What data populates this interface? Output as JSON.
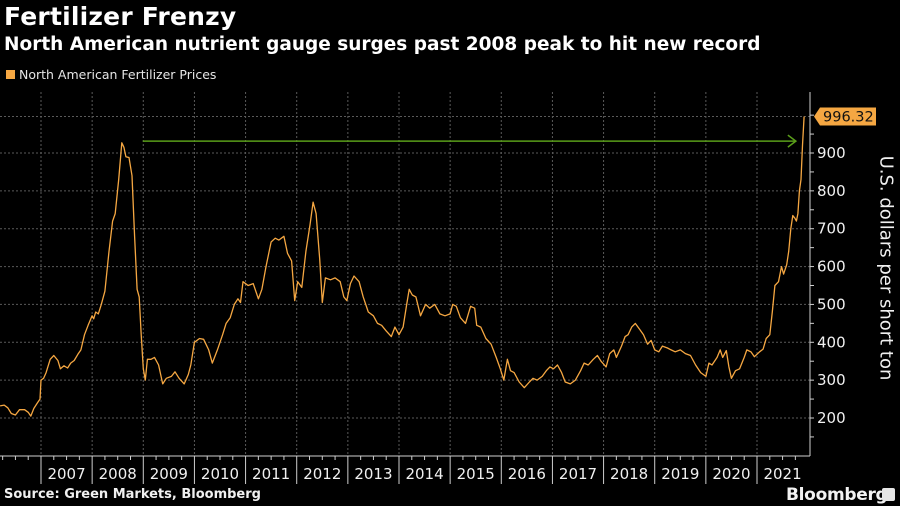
{
  "header": {
    "title": "Fertilizer Frenzy",
    "subtitle": "North American nutrient gauge surges past 2008 peak to hit new record"
  },
  "legend": {
    "items": [
      {
        "label": "North American Fertilizer Prices",
        "color": "#f5a742"
      }
    ]
  },
  "footer": {
    "source": "Source: Green Markets, Bloomberg",
    "brand": "Bloomberg"
  },
  "colors": {
    "series": "#f5a742",
    "arrow": "#5a9e1a",
    "grid": "#5a5a5a",
    "axis": "#cfcfcf",
    "label_bg": "#f5a742"
  },
  "chart_data": {
    "type": "line",
    "title": "Fertilizer Frenzy",
    "subtitle": "North American nutrient gauge surges past 2008 peak to hit new record",
    "xlabel": "",
    "ylabel": "U.S. dollars per short ton",
    "ylim": [
      140,
      1020
    ],
    "xlim": [
      2006.2,
      2021.8
    ],
    "yticks": [
      200,
      300,
      400,
      500,
      600,
      700,
      800,
      900
    ],
    "xticks": [
      "2007",
      "2008",
      "2009",
      "2010",
      "2011",
      "2012",
      "2013",
      "2014",
      "2015",
      "2016",
      "2017",
      "2018",
      "2019",
      "2020",
      "2021"
    ],
    "grid": true,
    "legend_position": "top-left",
    "last_value_label": "996.32",
    "annotation": "Arrow from 2008 peak level extending to 2021 record",
    "series": [
      {
        "name": "North American Fertilizer Prices",
        "points": [
          [
            2006.2,
            232
          ],
          [
            2006.28,
            234
          ],
          [
            2006.35,
            227
          ],
          [
            2006.42,
            212
          ],
          [
            2006.5,
            208
          ],
          [
            2006.58,
            222
          ],
          [
            2006.68,
            222
          ],
          [
            2006.75,
            215
          ],
          [
            2006.8,
            205
          ],
          [
            2006.86,
            225
          ],
          [
            2006.93,
            240
          ],
          [
            2006.98,
            250
          ],
          [
            2007.0,
            300
          ],
          [
            2007.05,
            305
          ],
          [
            2007.1,
            320
          ],
          [
            2007.18,
            355
          ],
          [
            2007.25,
            365
          ],
          [
            2007.33,
            352
          ],
          [
            2007.38,
            330
          ],
          [
            2007.45,
            338
          ],
          [
            2007.52,
            332
          ],
          [
            2007.58,
            345
          ],
          [
            2007.65,
            352
          ],
          [
            2007.72,
            368
          ],
          [
            2007.78,
            380
          ],
          [
            2007.85,
            420
          ],
          [
            2007.92,
            445
          ],
          [
            2008.0,
            470
          ],
          [
            2008.03,
            462
          ],
          [
            2008.07,
            480
          ],
          [
            2008.12,
            475
          ],
          [
            2008.18,
            500
          ],
          [
            2008.25,
            535
          ],
          [
            2008.33,
            640
          ],
          [
            2008.4,
            720
          ],
          [
            2008.45,
            740
          ],
          [
            2008.52,
            830
          ],
          [
            2008.58,
            927
          ],
          [
            2008.62,
            915
          ],
          [
            2008.66,
            890
          ],
          [
            2008.72,
            888
          ],
          [
            2008.78,
            840
          ],
          [
            2008.83,
            680
          ],
          [
            2008.88,
            540
          ],
          [
            2008.92,
            520
          ],
          [
            2008.96,
            420
          ],
          [
            2009.0,
            330
          ],
          [
            2009.04,
            300
          ],
          [
            2009.08,
            355
          ],
          [
            2009.15,
            355
          ],
          [
            2009.22,
            360
          ],
          [
            2009.3,
            340
          ],
          [
            2009.38,
            290
          ],
          [
            2009.45,
            305
          ],
          [
            2009.55,
            310
          ],
          [
            2009.62,
            322
          ],
          [
            2009.7,
            305
          ],
          [
            2009.8,
            290
          ],
          [
            2009.88,
            315
          ],
          [
            2009.93,
            340
          ],
          [
            2010.0,
            400
          ],
          [
            2010.1,
            410
          ],
          [
            2010.18,
            408
          ],
          [
            2010.28,
            380
          ],
          [
            2010.35,
            345
          ],
          [
            2010.45,
            380
          ],
          [
            2010.55,
            420
          ],
          [
            2010.62,
            450
          ],
          [
            2010.7,
            465
          ],
          [
            2010.78,
            500
          ],
          [
            2010.85,
            515
          ],
          [
            2010.9,
            505
          ],
          [
            2010.95,
            560
          ],
          [
            2011.05,
            550
          ],
          [
            2011.15,
            555
          ],
          [
            2011.25,
            515
          ],
          [
            2011.32,
            540
          ],
          [
            2011.4,
            600
          ],
          [
            2011.5,
            665
          ],
          [
            2011.58,
            675
          ],
          [
            2011.65,
            670
          ],
          [
            2011.75,
            680
          ],
          [
            2011.82,
            635
          ],
          [
            2011.9,
            615
          ],
          [
            2011.96,
            510
          ],
          [
            2012.02,
            560
          ],
          [
            2012.1,
            545
          ],
          [
            2012.18,
            640
          ],
          [
            2012.26,
            710
          ],
          [
            2012.32,
            770
          ],
          [
            2012.38,
            740
          ],
          [
            2012.45,
            620
          ],
          [
            2012.5,
            505
          ],
          [
            2012.56,
            570
          ],
          [
            2012.66,
            565
          ],
          [
            2012.75,
            570
          ],
          [
            2012.85,
            560
          ],
          [
            2012.92,
            520
          ],
          [
            2012.98,
            510
          ],
          [
            2013.05,
            555
          ],
          [
            2013.12,
            575
          ],
          [
            2013.22,
            560
          ],
          [
            2013.3,
            520
          ],
          [
            2013.4,
            480
          ],
          [
            2013.5,
            470
          ],
          [
            2013.58,
            450
          ],
          [
            2013.66,
            445
          ],
          [
            2013.75,
            430
          ],
          [
            2013.85,
            415
          ],
          [
            2013.92,
            440
          ],
          [
            2014.0,
            420
          ],
          [
            2014.08,
            440
          ],
          [
            2014.15,
            500
          ],
          [
            2014.2,
            540
          ],
          [
            2014.26,
            525
          ],
          [
            2014.33,
            520
          ],
          [
            2014.42,
            470
          ],
          [
            2014.52,
            500
          ],
          [
            2014.6,
            490
          ],
          [
            2014.7,
            500
          ],
          [
            2014.8,
            475
          ],
          [
            2014.9,
            470
          ],
          [
            2015.0,
            475
          ],
          [
            2015.05,
            500
          ],
          [
            2015.12,
            495
          ],
          [
            2015.2,
            465
          ],
          [
            2015.3,
            450
          ],
          [
            2015.4,
            495
          ],
          [
            2015.48,
            490
          ],
          [
            2015.52,
            445
          ],
          [
            2015.6,
            440
          ],
          [
            2015.7,
            410
          ],
          [
            2015.8,
            395
          ],
          [
            2015.9,
            360
          ],
          [
            2015.98,
            330
          ],
          [
            2016.05,
            300
          ],
          [
            2016.12,
            355
          ],
          [
            2016.18,
            325
          ],
          [
            2016.25,
            320
          ],
          [
            2016.35,
            295
          ],
          [
            2016.45,
            280
          ],
          [
            2016.55,
            295
          ],
          [
            2016.62,
            305
          ],
          [
            2016.7,
            300
          ],
          [
            2016.8,
            310
          ],
          [
            2016.88,
            325
          ],
          [
            2016.95,
            335
          ],
          [
            2017.02,
            330
          ],
          [
            2017.1,
            340
          ],
          [
            2017.18,
            320
          ],
          [
            2017.25,
            295
          ],
          [
            2017.35,
            290
          ],
          [
            2017.45,
            300
          ],
          [
            2017.55,
            325
          ],
          [
            2017.62,
            345
          ],
          [
            2017.7,
            340
          ],
          [
            2017.8,
            355
          ],
          [
            2017.88,
            365
          ],
          [
            2017.95,
            350
          ],
          [
            2018.05,
            335
          ],
          [
            2018.12,
            370
          ],
          [
            2018.2,
            380
          ],
          [
            2018.25,
            360
          ],
          [
            2018.35,
            390
          ],
          [
            2018.42,
            415
          ],
          [
            2018.48,
            420
          ],
          [
            2018.55,
            440
          ],
          [
            2018.62,
            450
          ],
          [
            2018.7,
            435
          ],
          [
            2018.78,
            420
          ],
          [
            2018.86,
            395
          ],
          [
            2018.93,
            405
          ],
          [
            2019.0,
            380
          ],
          [
            2019.08,
            375
          ],
          [
            2019.15,
            390
          ],
          [
            2019.25,
            385
          ],
          [
            2019.32,
            380
          ],
          [
            2019.4,
            375
          ],
          [
            2019.5,
            380
          ],
          [
            2019.6,
            370
          ],
          [
            2019.7,
            365
          ],
          [
            2019.8,
            340
          ],
          [
            2019.9,
            320
          ],
          [
            2020.0,
            310
          ],
          [
            2020.06,
            345
          ],
          [
            2020.12,
            340
          ],
          [
            2020.22,
            360
          ],
          [
            2020.28,
            380
          ],
          [
            2020.33,
            360
          ],
          [
            2020.4,
            378
          ],
          [
            2020.45,
            335
          ],
          [
            2020.5,
            305
          ],
          [
            2020.58,
            325
          ],
          [
            2020.66,
            330
          ],
          [
            2020.75,
            360
          ],
          [
            2020.8,
            380
          ],
          [
            2020.88,
            375
          ],
          [
            2020.95,
            362
          ],
          [
            2021.05,
            375
          ],
          [
            2021.12,
            382
          ],
          [
            2021.18,
            410
          ],
          [
            2021.25,
            420
          ],
          [
            2021.3,
            480
          ],
          [
            2021.35,
            550
          ],
          [
            2021.42,
            560
          ],
          [
            2021.48,
            600
          ],
          [
            2021.52,
            580
          ],
          [
            2021.58,
            605
          ],
          [
            2021.62,
            640
          ],
          [
            2021.66,
            700
          ],
          [
            2021.7,
            735
          ],
          [
            2021.74,
            728
          ],
          [
            2021.77,
            720
          ],
          [
            2021.8,
            740
          ],
          [
            2021.83,
            800
          ],
          [
            2021.86,
            830
          ],
          [
            2021.89,
            920
          ],
          [
            2021.92,
            996.32
          ]
        ]
      }
    ],
    "reference_arrow": {
      "from_x": 2008.99,
      "to_x": 2021.76,
      "y": 926,
      "color": "#5a9e1a"
    }
  }
}
